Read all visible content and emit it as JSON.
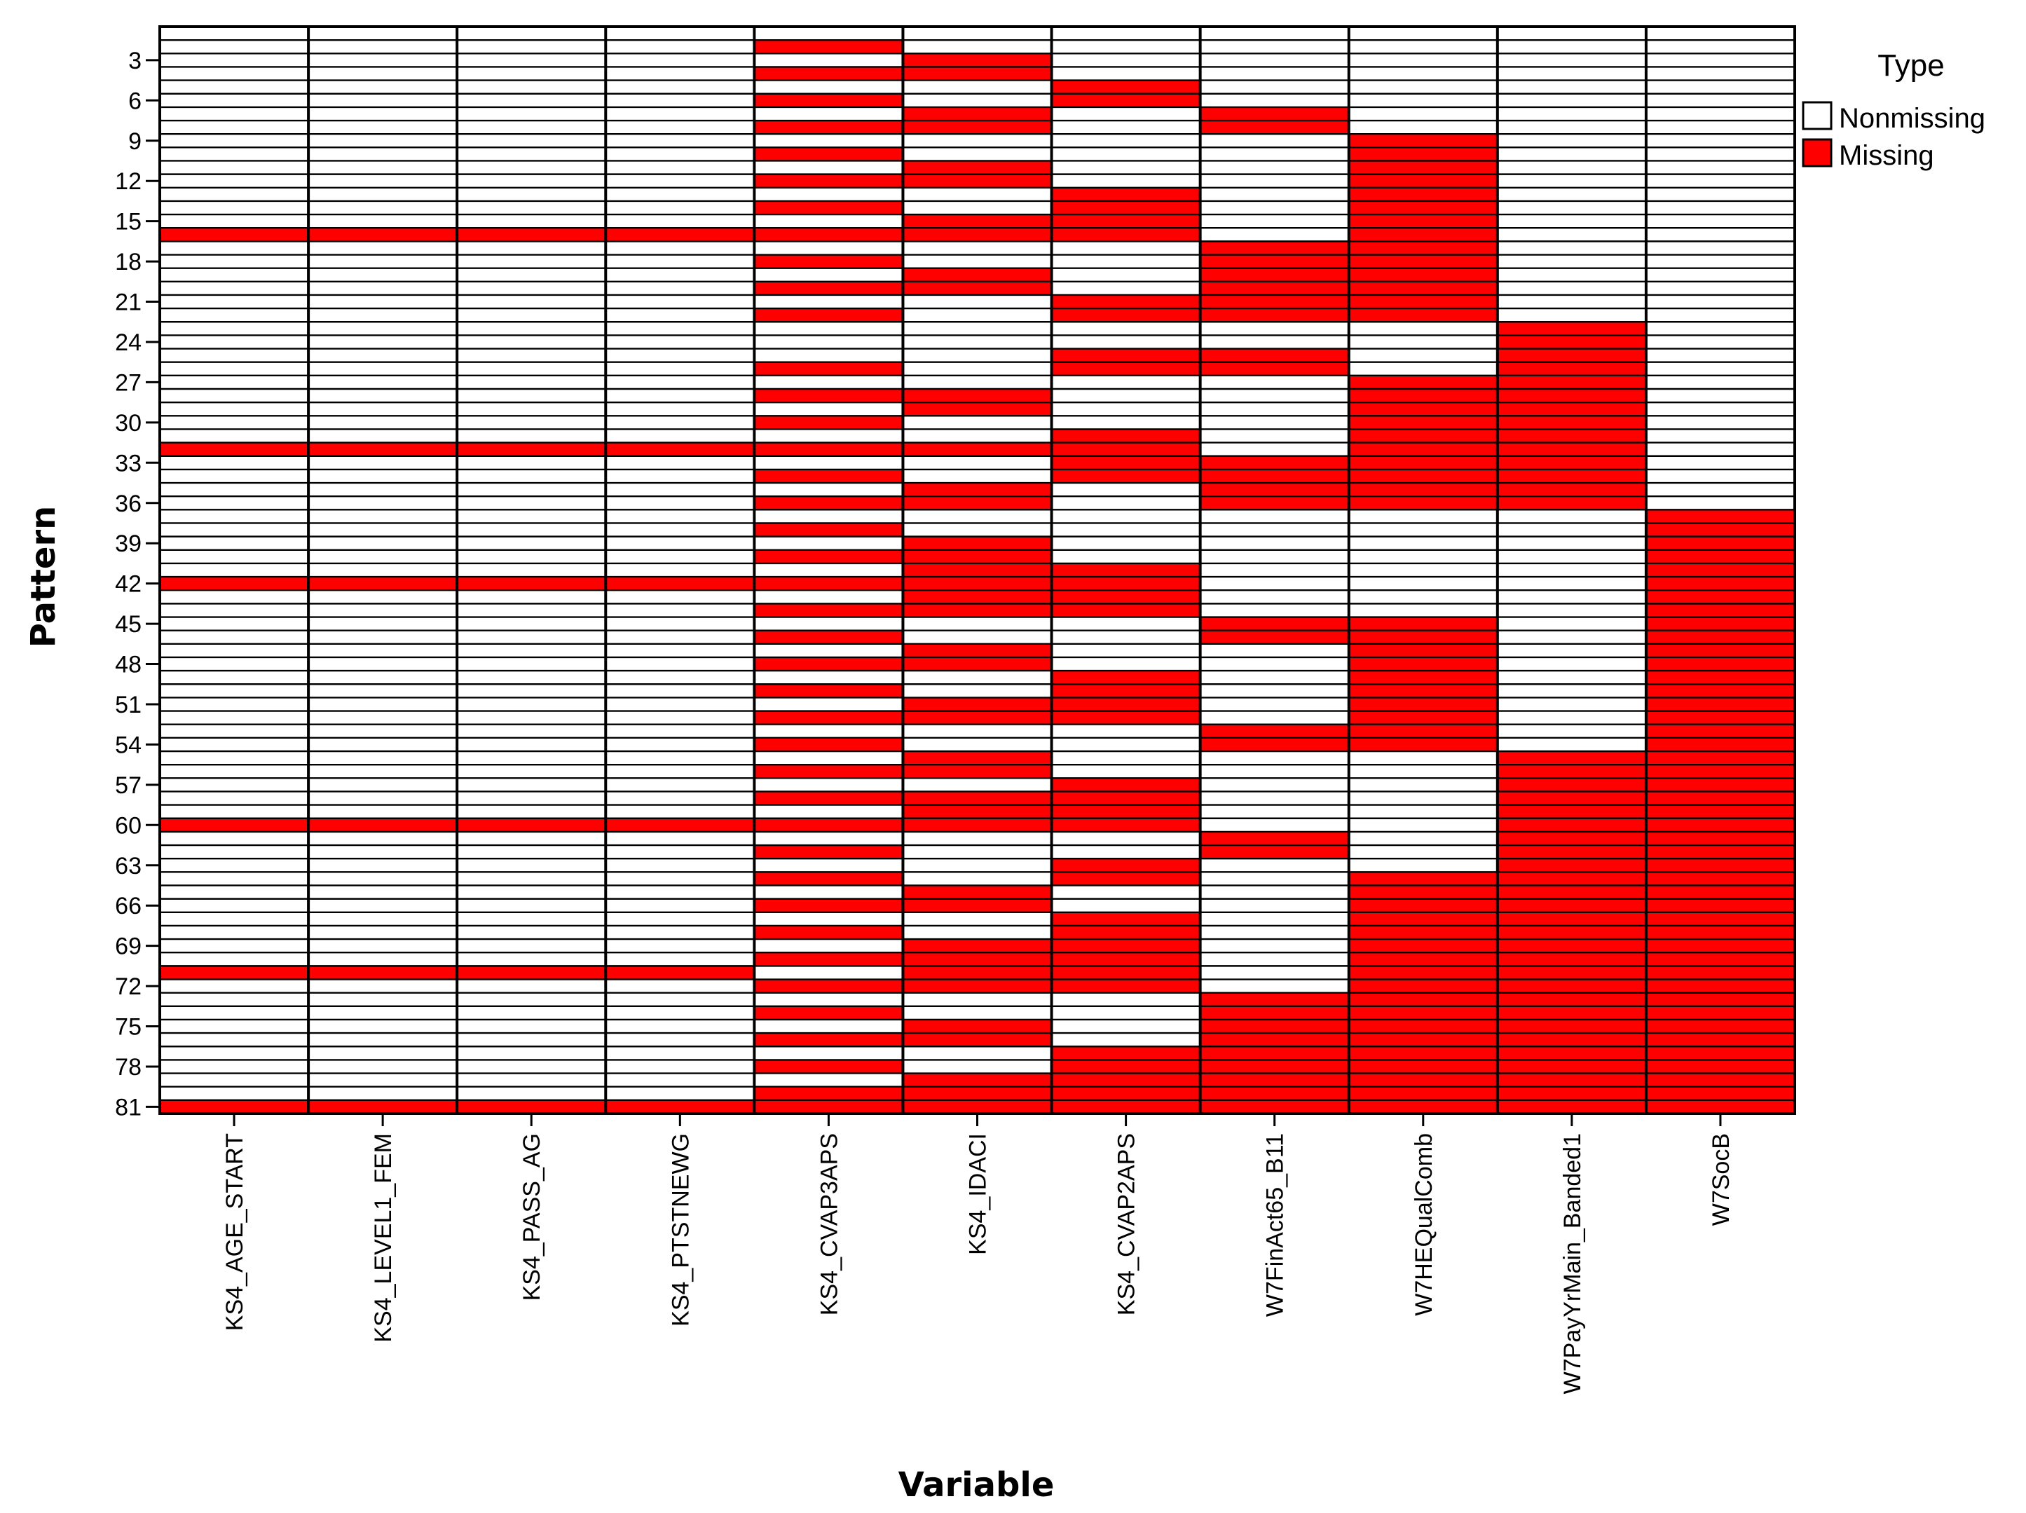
{
  "chart_data": {
    "type": "heatmap",
    "title": "",
    "xlabel": "Variable",
    "ylabel": "Pattern",
    "colors": {
      "nonmissing": "#ffffff",
      "missing": "#ff0000",
      "outline": "#000000"
    },
    "legend": {
      "title": "Type",
      "position": "top-right",
      "items": [
        {
          "label": "Nonmissing",
          "color": "#ffffff"
        },
        {
          "label": "Missing",
          "color": "#ff0000"
        }
      ]
    },
    "variables": [
      "KS4_AGE_START",
      "KS4_LEVEL1_FEM",
      "KS4_PASS_AG",
      "KS4_PTSTNEWG",
      "KS4_CVAP3APS",
      "KS4_IDACI",
      "KS4_CVAP2APS",
      "W7FinAct65_B11",
      "W7HEQualComb",
      "W7PayYrMain_Banded1",
      "W7SocB"
    ],
    "pattern_count": 81,
    "y_ticks": [
      3,
      6,
      9,
      12,
      15,
      18,
      21,
      24,
      27,
      30,
      33,
      36,
      39,
      42,
      45,
      48,
      51,
      54,
      57,
      60,
      63,
      66,
      69,
      72,
      75,
      78,
      81
    ],
    "missing_patterns_by_variable": {
      "KS4_AGE_START": [
        16,
        32,
        42,
        60,
        71,
        81
      ],
      "KS4_LEVEL1_FEM": [
        16,
        32,
        42,
        60,
        71,
        81
      ],
      "KS4_PASS_AG": [
        16,
        32,
        42,
        60,
        71,
        81
      ],
      "KS4_PTSTNEWG": [
        16,
        32,
        42,
        60,
        71,
        81
      ],
      "KS4_CVAP3APS": [
        2,
        4,
        6,
        8,
        10,
        12,
        14,
        16,
        18,
        20,
        22,
        26,
        28,
        30,
        32,
        34,
        36,
        38,
        40,
        42,
        44,
        46,
        48,
        50,
        52,
        54,
        56,
        58,
        60,
        62,
        64,
        66,
        68,
        70,
        72,
        74,
        76,
        78,
        80,
        81
      ],
      "KS4_IDACI": [
        3,
        4,
        7,
        8,
        11,
        12,
        15,
        16,
        19,
        20,
        28,
        29,
        32,
        35,
        36,
        39,
        40,
        41,
        42,
        43,
        44,
        47,
        48,
        51,
        52,
        55,
        56,
        58,
        59,
        60,
        65,
        66,
        69,
        70,
        71,
        72,
        75,
        76,
        79,
        80,
        81
      ],
      "KS4_CVAP2APS": [
        5,
        6,
        13,
        14,
        15,
        16,
        21,
        22,
        25,
        26,
        31,
        32,
        33,
        34,
        41,
        42,
        43,
        44,
        49,
        50,
        51,
        52,
        57,
        58,
        59,
        60,
        63,
        64,
        67,
        68,
        69,
        70,
        71,
        72,
        77,
        78,
        79,
        80,
        81
      ],
      "W7FinAct65_B11": [
        7,
        8,
        17,
        18,
        19,
        20,
        21,
        22,
        25,
        26,
        33,
        34,
        35,
        36,
        45,
        46,
        53,
        54,
        61,
        62,
        73,
        74,
        75,
        76,
        77,
        78,
        79,
        80,
        81
      ],
      "W7HEQualComb": [
        9,
        10,
        11,
        12,
        13,
        14,
        15,
        16,
        17,
        18,
        19,
        20,
        21,
        22,
        27,
        28,
        29,
        30,
        31,
        32,
        33,
        34,
        35,
        36,
        45,
        46,
        47,
        48,
        49,
        50,
        51,
        52,
        53,
        54,
        64,
        65,
        66,
        67,
        68,
        69,
        70,
        71,
        72,
        73,
        74,
        75,
        76,
        77,
        78,
        79,
        80,
        81
      ],
      "W7PayYrMain_Banded1": [
        23,
        24,
        25,
        26,
        27,
        28,
        29,
        30,
        31,
        32,
        33,
        34,
        35,
        36,
        55,
        56,
        57,
        58,
        59,
        60,
        61,
        62,
        63,
        64,
        65,
        66,
        67,
        68,
        69,
        70,
        71,
        72,
        73,
        74,
        75,
        76,
        77,
        78,
        79,
        80,
        81
      ],
      "W7SocB": [
        37,
        38,
        39,
        40,
        41,
        42,
        43,
        44,
        45,
        46,
        47,
        48,
        49,
        50,
        51,
        52,
        53,
        54,
        55,
        56,
        57,
        58,
        59,
        60,
        61,
        62,
        63,
        64,
        65,
        66,
        67,
        68,
        69,
        70,
        71,
        72,
        73,
        74,
        75,
        76,
        77,
        78,
        79,
        80,
        81
      ]
    }
  }
}
